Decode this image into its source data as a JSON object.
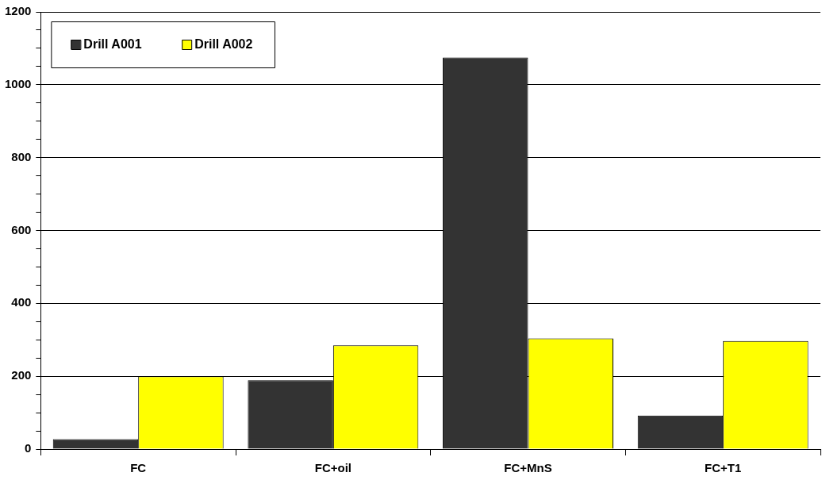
{
  "chart_data": {
    "type": "bar",
    "categories": [
      "FC",
      "FC+oil",
      "FC+MnS",
      "FC+T1"
    ],
    "series": [
      {
        "name": "Drill A001",
        "color": "#333333",
        "values": [
          27,
          189,
          1075,
          92
        ]
      },
      {
        "name": "Drill A002",
        "color": "#ffff00",
        "values": [
          200,
          285,
          304,
          297
        ]
      }
    ],
    "ylim": [
      0,
      1200
    ],
    "yticks": [
      0,
      {
        "value": 50,
        "label": null
      },
      {
        "value": 100,
        "label": null
      },
      {
        "value": 150,
        "label": null
      },
      200,
      {
        "value": 250,
        "label": null
      },
      {
        "value": 300,
        "label": null
      },
      {
        "value": 350,
        "label": null
      },
      400,
      {
        "value": 450,
        "label": null
      },
      {
        "value": 500,
        "label": null
      },
      {
        "value": 550,
        "label": null
      },
      600,
      {
        "value": 650,
        "label": null
      },
      {
        "value": 700,
        "label": null
      },
      {
        "value": 750,
        "label": null
      },
      800,
      {
        "value": 850,
        "label": null
      },
      {
        "value": 900,
        "label": null
      },
      {
        "value": 950,
        "label": null
      },
      1000,
      {
        "value": 1050,
        "label": null
      },
      {
        "value": 1100,
        "label": null
      },
      {
        "value": 1150,
        "label": null
      },
      1200
    ],
    "grid": "y",
    "legend": "top left"
  }
}
